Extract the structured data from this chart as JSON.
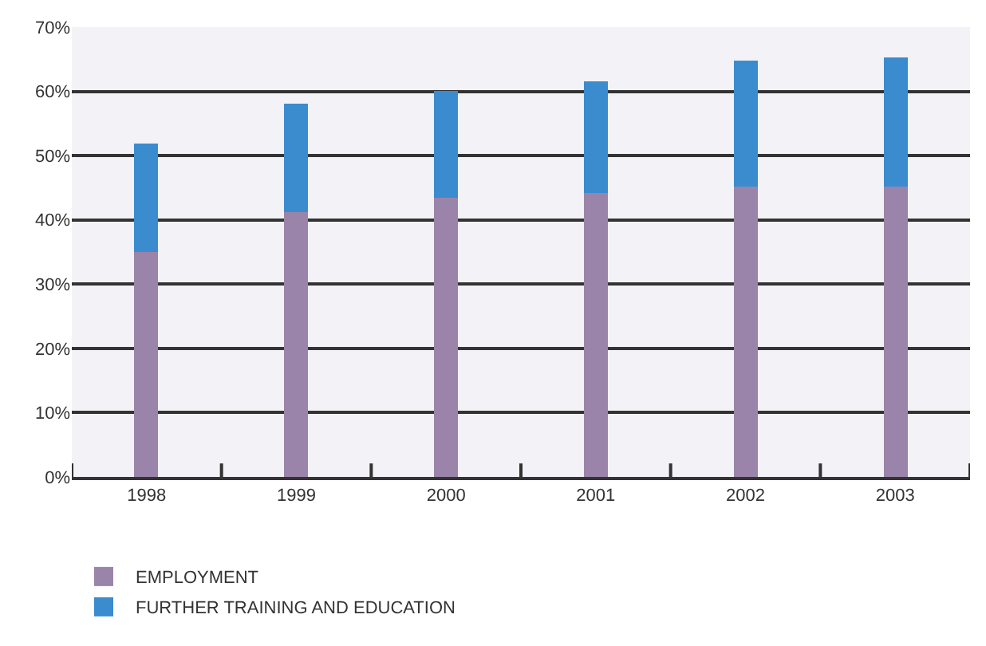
{
  "chart_data": {
    "type": "bar",
    "stacked": true,
    "categories": [
      "1998",
      "1999",
      "2000",
      "2001",
      "2002",
      "2003"
    ],
    "series": [
      {
        "name": "EMPLOYMENT",
        "color": "#9b84a9",
        "values": [
          35,
          41.3,
          43.5,
          44.2,
          45.3,
          45.1
        ]
      },
      {
        "name": "FURTHER TRAINING AND EDUCATION",
        "color": "#3a8ccf",
        "values": [
          17,
          16.7,
          16.5,
          17.4,
          19.5,
          20.1
        ]
      }
    ],
    "ylim": [
      0,
      70
    ],
    "yticks": [
      {
        "value": 0,
        "label": "0%"
      },
      {
        "value": 10,
        "label": "10%"
      },
      {
        "value": 20,
        "label": "20%"
      },
      {
        "value": 30,
        "label": "30%"
      },
      {
        "value": 40,
        "label": "40%"
      },
      {
        "value": 50,
        "label": "50%"
      },
      {
        "value": 60,
        "label": "60%"
      },
      {
        "value": 70,
        "label": "70%"
      }
    ],
    "grid": "y",
    "legend": "bottom left"
  }
}
